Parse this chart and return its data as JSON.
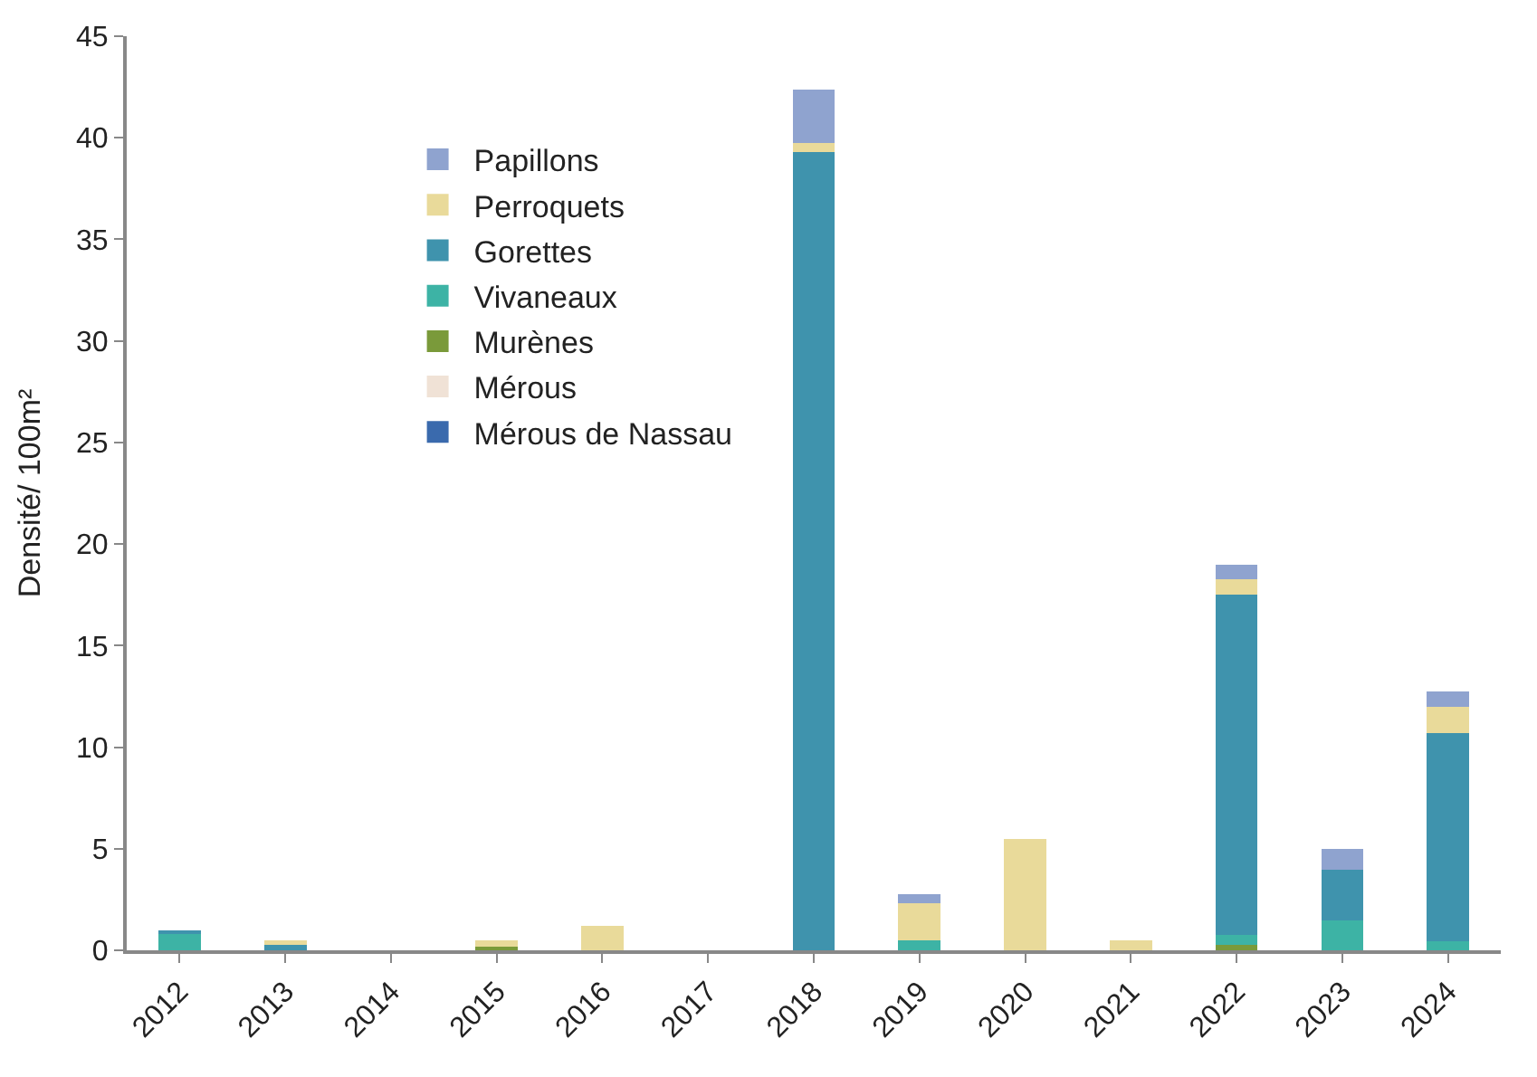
{
  "chart_data": {
    "type": "bar",
    "stacked": true,
    "ylabel": "Densité/ 100m²",
    "categories": [
      "2012",
      "2013",
      "2014",
      "2015",
      "2016",
      "2017",
      "2018",
      "2019",
      "2020",
      "2021",
      "2022",
      "2023",
      "2024"
    ],
    "series": [
      {
        "name": "Mérous de Nassau",
        "color": "#3a6aad",
        "values": [
          0,
          0,
          0,
          0,
          0,
          0,
          0,
          0,
          0,
          0,
          0,
          0,
          0
        ]
      },
      {
        "name": "Mérous",
        "color": "#f0e2d6",
        "values": [
          0,
          0,
          0,
          0,
          0,
          0,
          0,
          0,
          0,
          0,
          0,
          0,
          0
        ]
      },
      {
        "name": "Murènes",
        "color": "#7a9a3a",
        "values": [
          0,
          0,
          0,
          0.2,
          0,
          0,
          0,
          0,
          0,
          0,
          0.25,
          0,
          0
        ]
      },
      {
        "name": "Vivaneaux",
        "color": "#3db3a5",
        "values": [
          0.8,
          0,
          0,
          0,
          0,
          0,
          0,
          0.5,
          0,
          0,
          0.5,
          1.45,
          0.45
        ]
      },
      {
        "name": "Gorettes",
        "color": "#3f93ad",
        "values": [
          0.2,
          0.25,
          0,
          0,
          0,
          0,
          39.3,
          0,
          0,
          0,
          16.75,
          2.5,
          10.25
        ]
      },
      {
        "name": "Perroquets",
        "color": "#e9da9a",
        "values": [
          0,
          0.25,
          0,
          0.3,
          1.2,
          0,
          0.45,
          1.8,
          5.5,
          0.5,
          0.75,
          0,
          1.3
        ]
      },
      {
        "name": "Papillons",
        "color": "#8fa3cf",
        "values": [
          0,
          0,
          0,
          0,
          0,
          0,
          2.6,
          0.45,
          0,
          0,
          0.75,
          1.05,
          0.75
        ]
      }
    ],
    "ylim": [
      0,
      45
    ],
    "yticks": [
      0,
      5,
      10,
      15,
      20,
      25,
      30,
      35,
      40,
      45
    ],
    "grid": false,
    "legend": "top left"
  }
}
